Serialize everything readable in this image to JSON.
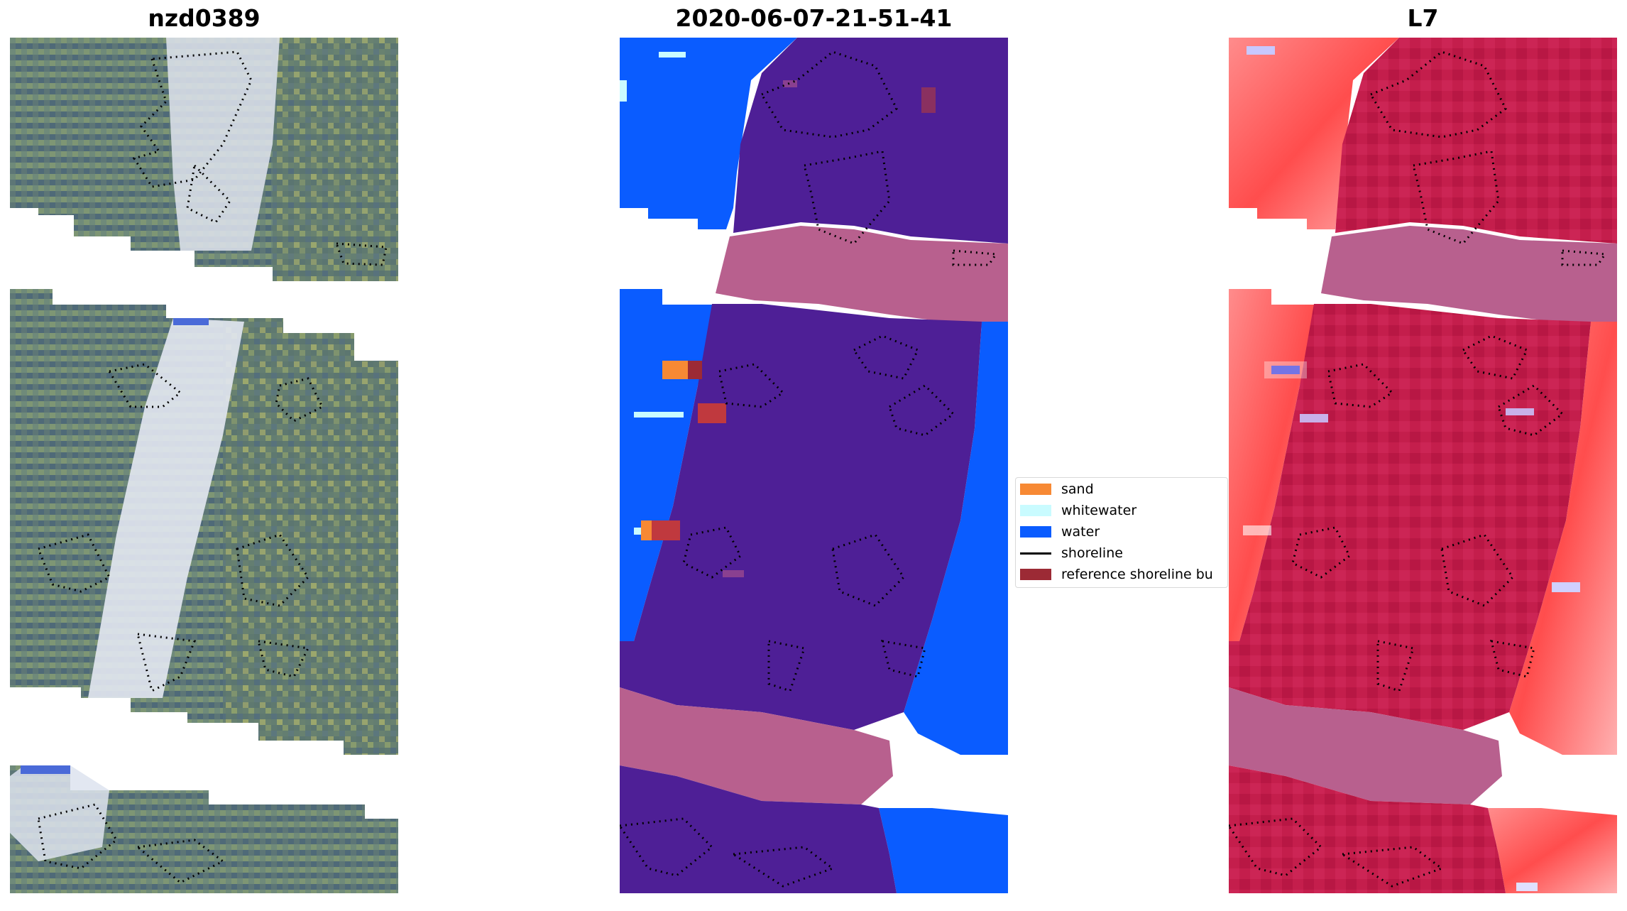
{
  "panels": {
    "rgb": {
      "title": "nzd0389"
    },
    "classified": {
      "title": "2020-06-07-21-51-41"
    },
    "index": {
      "title": "L7"
    }
  },
  "legend": {
    "items": [
      {
        "label": "sand",
        "kind": "patch",
        "color": "#f78934"
      },
      {
        "label": "whitewater",
        "kind": "patch",
        "color": "#c9fbff"
      },
      {
        "label": "water",
        "kind": "patch",
        "color": "#0a5cff"
      },
      {
        "label": "shoreline",
        "kind": "line",
        "color": "#000000"
      },
      {
        "label": "reference shoreline bu",
        "kind": "patch",
        "color": "#9c2a35"
      }
    ]
  },
  "colors": {
    "land_class": "#4e1f96",
    "no_data_band": "#b8608e",
    "index_land": "#c41e4c",
    "index_water": "#ff6b6b",
    "rgb_land": "#5c7a78",
    "rgb_whitewater": "#d8dde8"
  }
}
